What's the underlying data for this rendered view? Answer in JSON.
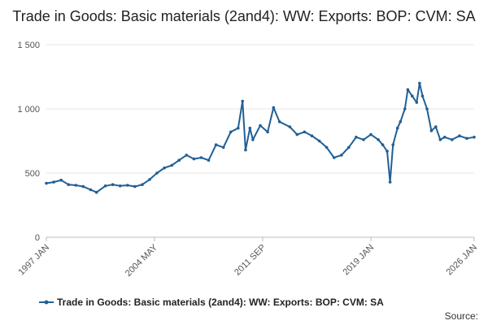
{
  "chart_data": {
    "type": "line",
    "title": "Trade in Goods: Basic materials (2and4): WW: Exports: BOP: CVM: SA",
    "xlabel": "",
    "ylabel": "",
    "x_ticks": [
      {
        "label": "1997 JAN",
        "x": 1997.0
      },
      {
        "label": "2004 MAY",
        "x": 2004.333
      },
      {
        "label": "2011 SEP",
        "x": 2011.667
      },
      {
        "label": "2019 JAN",
        "x": 2019.0
      },
      {
        "label": "2026 JAN",
        "x": 2026.0
      }
    ],
    "y_ticks": [
      {
        "label": "0",
        "value": 0
      },
      {
        "label": "500",
        "value": 500
      },
      {
        "label": "1 000",
        "value": 1000
      },
      {
        "label": "1 500",
        "value": 1500
      }
    ],
    "xlim": [
      1997.0,
      2026.0
    ],
    "ylim": [
      0,
      1500
    ],
    "grid": "horizontal",
    "legend": "bottom",
    "series": [
      {
        "name": "Trade in Goods: Basic materials (2and4): WW: Exports: BOP: CVM: SA",
        "color": "#206095",
        "points": [
          [
            1997.0,
            420
          ],
          [
            1997.5,
            430
          ],
          [
            1998.0,
            445
          ],
          [
            1998.5,
            410
          ],
          [
            1999.0,
            405
          ],
          [
            1999.5,
            395
          ],
          [
            2000.0,
            370
          ],
          [
            2000.4,
            350
          ],
          [
            2001.0,
            400
          ],
          [
            2001.5,
            410
          ],
          [
            2002.0,
            400
          ],
          [
            2002.5,
            405
          ],
          [
            2003.0,
            395
          ],
          [
            2003.5,
            410
          ],
          [
            2004.0,
            450
          ],
          [
            2004.5,
            500
          ],
          [
            2005.0,
            540
          ],
          [
            2005.5,
            560
          ],
          [
            2006.0,
            600
          ],
          [
            2006.5,
            640
          ],
          [
            2007.0,
            610
          ],
          [
            2007.5,
            620
          ],
          [
            2008.0,
            600
          ],
          [
            2008.5,
            720
          ],
          [
            2009.0,
            700
          ],
          [
            2009.5,
            820
          ],
          [
            2010.0,
            850
          ],
          [
            2010.3,
            1060
          ],
          [
            2010.5,
            680
          ],
          [
            2010.8,
            850
          ],
          [
            2011.0,
            760
          ],
          [
            2011.5,
            870
          ],
          [
            2012.0,
            820
          ],
          [
            2012.4,
            1010
          ],
          [
            2012.8,
            900
          ],
          [
            2013.5,
            860
          ],
          [
            2014.0,
            800
          ],
          [
            2014.5,
            820
          ],
          [
            2015.0,
            790
          ],
          [
            2015.5,
            750
          ],
          [
            2016.0,
            700
          ],
          [
            2016.5,
            620
          ],
          [
            2017.0,
            640
          ],
          [
            2017.5,
            700
          ],
          [
            2018.0,
            780
          ],
          [
            2018.5,
            760
          ],
          [
            2019.0,
            800
          ],
          [
            2019.5,
            760
          ],
          [
            2019.8,
            720
          ],
          [
            2020.1,
            670
          ],
          [
            2020.3,
            430
          ],
          [
            2020.5,
            720
          ],
          [
            2020.8,
            850
          ],
          [
            2021.0,
            900
          ],
          [
            2021.3,
            1000
          ],
          [
            2021.5,
            1150
          ],
          [
            2021.8,
            1100
          ],
          [
            2022.1,
            1050
          ],
          [
            2022.3,
            1200
          ],
          [
            2022.5,
            1100
          ],
          [
            2022.8,
            1000
          ],
          [
            2023.1,
            830
          ],
          [
            2023.4,
            860
          ],
          [
            2023.7,
            760
          ],
          [
            2024.0,
            780
          ],
          [
            2024.5,
            760
          ],
          [
            2025.0,
            790
          ],
          [
            2025.5,
            770
          ],
          [
            2026.0,
            780
          ]
        ]
      }
    ],
    "source_label": "Source:"
  }
}
